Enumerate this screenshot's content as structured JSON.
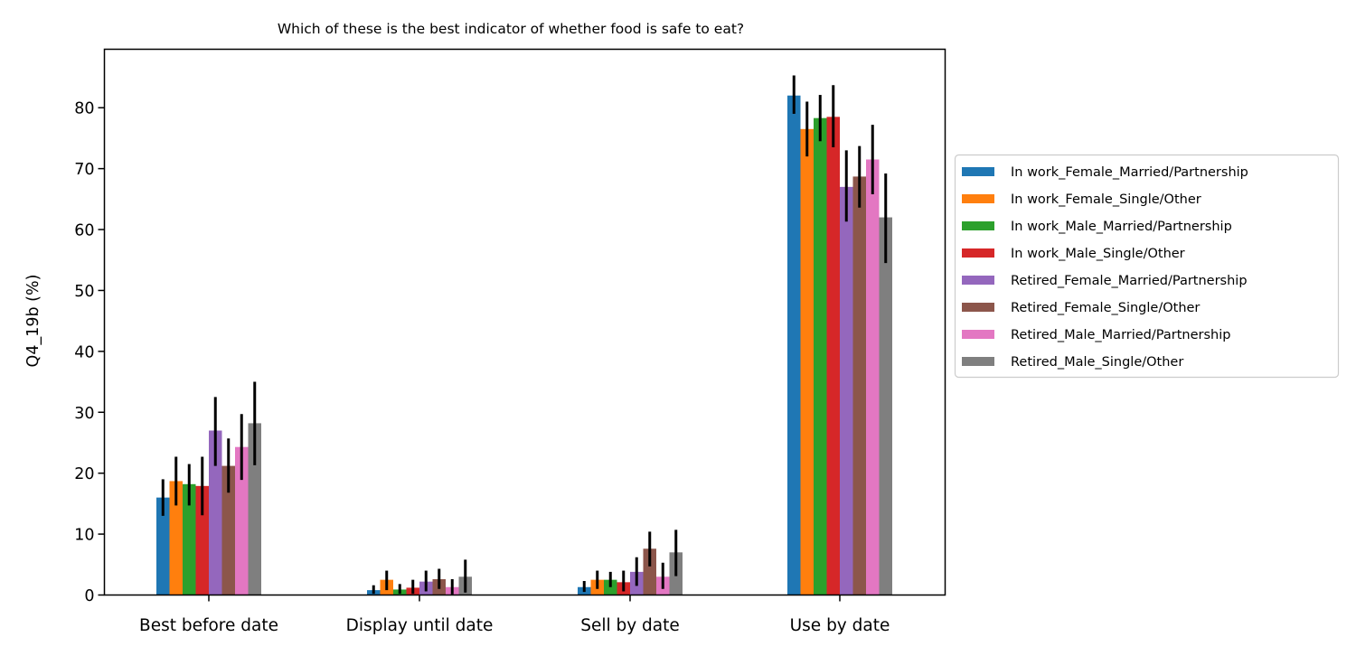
{
  "chart_data": {
    "type": "bar",
    "title": "Which of these is the best indicator of whether food is safe to eat?",
    "xlabel": "",
    "ylabel": "Q4_19b (%)",
    "ylim": [
      0,
      89.6
    ],
    "yticks": [
      0,
      10,
      20,
      30,
      40,
      50,
      60,
      70,
      80
    ],
    "grid": false,
    "legend_placement": "right-outside",
    "categories": [
      "Best before date",
      "Display until date",
      "Sell by date",
      "Use by date"
    ],
    "series": [
      {
        "name": "In work_Female_Married/Partnership",
        "color": "#1f77b4",
        "values": [
          16.0,
          0.8,
          1.3,
          82.0
        ],
        "err_low": [
          13.0,
          0.2,
          0.5,
          79.0
        ],
        "err_high": [
          19.0,
          1.6,
          2.3,
          85.3
        ]
      },
      {
        "name": "In work_Female_Single/Other",
        "color": "#ff7f0e",
        "values": [
          18.7,
          2.5,
          2.5,
          76.5
        ],
        "err_low": [
          14.7,
          0.8,
          1.0,
          72.0
        ],
        "err_high": [
          22.7,
          4.0,
          4.0,
          81.0
        ]
      },
      {
        "name": "In work_Male_Married/Partnership",
        "color": "#2ca02c",
        "values": [
          18.2,
          0.9,
          2.5,
          78.3
        ],
        "err_low": [
          14.7,
          0.2,
          1.3,
          74.5
        ],
        "err_high": [
          21.5,
          1.8,
          3.8,
          82.1
        ]
      },
      {
        "name": "In work_Male_Single/Other",
        "color": "#d62728",
        "values": [
          17.9,
          1.2,
          2.1,
          78.5
        ],
        "err_low": [
          13.1,
          0.2,
          0.6,
          73.5
        ],
        "err_high": [
          22.7,
          2.5,
          4.0,
          83.7
        ]
      },
      {
        "name": "Retired_Female_Married/Partnership",
        "color": "#9467bd",
        "values": [
          27.0,
          2.2,
          3.8,
          67.0
        ],
        "err_low": [
          21.2,
          0.6,
          1.5,
          61.3
        ],
        "err_high": [
          32.5,
          4.0,
          6.2,
          73.0
        ]
      },
      {
        "name": "Retired_Female_Single/Other",
        "color": "#8c564b",
        "values": [
          21.2,
          2.6,
          7.6,
          68.7
        ],
        "err_low": [
          16.8,
          1.0,
          4.7,
          63.6
        ],
        "err_high": [
          25.7,
          4.3,
          10.4,
          73.7
        ]
      },
      {
        "name": "Retired_Male_Married/Partnership",
        "color": "#e377c2",
        "values": [
          24.3,
          1.3,
          3.0,
          71.5
        ],
        "err_low": [
          18.9,
          0.1,
          1.0,
          65.8
        ],
        "err_high": [
          29.7,
          2.6,
          5.3,
          77.2
        ]
      },
      {
        "name": "Retired_Male_Single/Other",
        "color": "#7f7f7f",
        "values": [
          28.2,
          3.0,
          7.0,
          62.0
        ],
        "err_low": [
          21.3,
          0.4,
          3.1,
          54.5
        ],
        "err_high": [
          35.0,
          5.8,
          10.7,
          69.2
        ]
      }
    ]
  }
}
